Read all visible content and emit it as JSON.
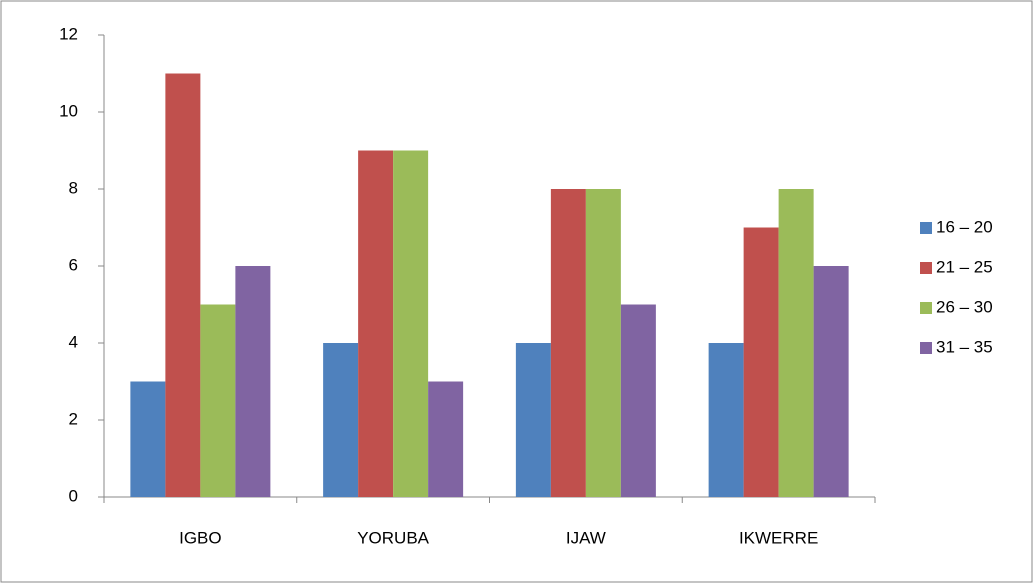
{
  "chart_data": {
    "type": "bar",
    "categories": [
      "IGBO",
      "YORUBA",
      "IJAW",
      "IKWERRE"
    ],
    "series": [
      {
        "name": "16 – 20",
        "color": "#4f81bd",
        "values": [
          3,
          4,
          4,
          4
        ]
      },
      {
        "name": "21 – 25",
        "color": "#c0504d",
        "values": [
          11,
          9,
          8,
          7
        ]
      },
      {
        "name": "26 – 30",
        "color": "#9bbb59",
        "values": [
          5,
          9,
          8,
          8
        ]
      },
      {
        "name": "31 – 35",
        "color": "#8064a2",
        "values": [
          6,
          3,
          5,
          6
        ]
      }
    ],
    "ylim": [
      0,
      12
    ],
    "yticks": [
      0,
      2,
      4,
      6,
      8,
      10,
      12
    ],
    "grid": false,
    "legend": "right"
  }
}
